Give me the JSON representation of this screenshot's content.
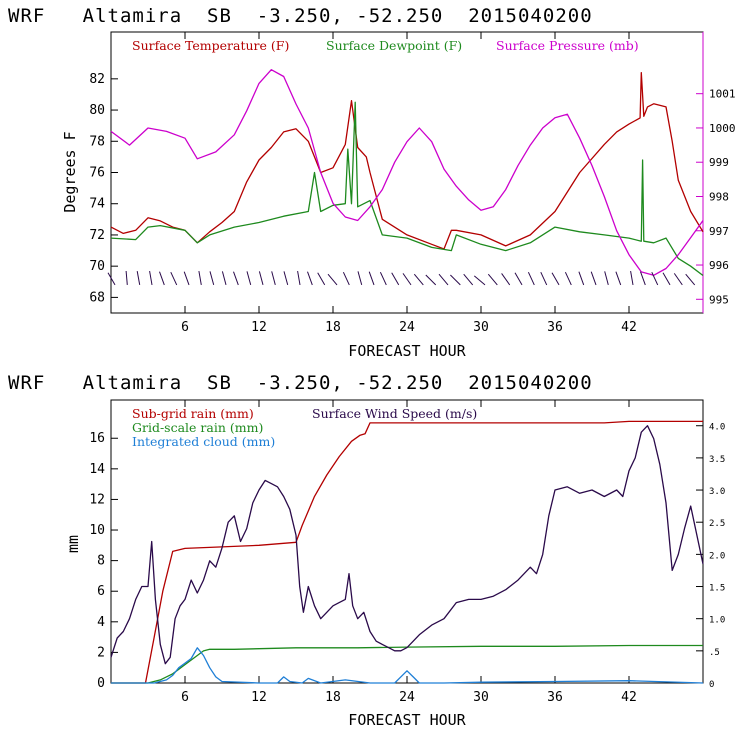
{
  "colors": {
    "temperature": "#b30000",
    "dewpoint": "#1e8a1e",
    "pressure": "#cc00cc",
    "subgrid": "#b30000",
    "gridscale": "#1e8a1e",
    "cloud": "#1f7fd6",
    "wind": "#2a0a4a",
    "barbs": "#2a0a4a"
  },
  "chart_data": [
    {
      "type": "line",
      "title": "WRF   Altamira  SB  -3.250, -52.250  2015040200",
      "xlabel": "FORECAST HOUR",
      "ylabel": "Degrees F",
      "xlim": [
        0,
        48
      ],
      "ylim": [
        67,
        85
      ],
      "y2lim": [
        994.6,
        1002.8
      ],
      "x_ticks": [
        6,
        12,
        18,
        24,
        30,
        36,
        42
      ],
      "x_tick_labels": [
        "6",
        "12",
        "18",
        "24",
        "30",
        "36",
        "42"
      ],
      "y_ticks": [
        68,
        70,
        72,
        74,
        76,
        78,
        80,
        82
      ],
      "y_tick_labels": [
        "68",
        "70",
        "72",
        "74",
        "76",
        "78",
        "80",
        "82"
      ],
      "y2_ticks": [
        995,
        996,
        997,
        998,
        999,
        1000,
        1001
      ],
      "y2_tick_labels": [
        "995",
        "996",
        "997",
        "998",
        "999",
        "1000",
        "1001"
      ],
      "legend": [
        "Surface Temperature (F)",
        "Surface Dewpoint (F)",
        "Surface Pressure (mb)"
      ],
      "series": [
        {
          "name": "Surface Temperature (F)",
          "axis": "left",
          "x": [
            0,
            1,
            2,
            3,
            4,
            5,
            6,
            7,
            8,
            9,
            10,
            11,
            12,
            13,
            14,
            15,
            16,
            17,
            18,
            19,
            19.5,
            20,
            20.7,
            21,
            22,
            24,
            26,
            27,
            27.6,
            28,
            30,
            32,
            34,
            36,
            38,
            40,
            41,
            42,
            42.9,
            43,
            43.2,
            43.5,
            44,
            45,
            45.5,
            46,
            47,
            48
          ],
          "y": [
            72.5,
            72.1,
            72.3,
            73.1,
            72.9,
            72.5,
            72.3,
            71.5,
            72.2,
            72.8,
            73.5,
            75.4,
            76.8,
            77.6,
            78.6,
            78.8,
            78.0,
            76.0,
            76.3,
            77.8,
            80.6,
            77.6,
            77.0,
            76.0,
            73.0,
            72.0,
            71.4,
            71.1,
            72.3,
            72.3,
            72.0,
            71.3,
            72.0,
            73.5,
            76.0,
            77.8,
            78.6,
            79.1,
            79.5,
            82.4,
            79.6,
            80.2,
            80.4,
            80.2,
            78.0,
            75.5,
            73.5,
            72.2
          ]
        },
        {
          "name": "Surface Dewpoint (F)",
          "axis": "left",
          "x": [
            0,
            2,
            3,
            4,
            6,
            7,
            8,
            10,
            12,
            14,
            16,
            16.5,
            17,
            18,
            19,
            19.2,
            19.5,
            19.8,
            20,
            21,
            22,
            24,
            26,
            27.6,
            28,
            30,
            32,
            34,
            36,
            38,
            40,
            42,
            43,
            43.1,
            43.2,
            44,
            45,
            46,
            47,
            48
          ],
          "y": [
            71.8,
            71.7,
            72.5,
            72.6,
            72.3,
            71.5,
            72.0,
            72.5,
            72.8,
            73.2,
            73.5,
            76.0,
            73.5,
            73.9,
            74.0,
            77.5,
            74.0,
            80.5,
            73.8,
            74.2,
            72.0,
            71.8,
            71.2,
            71.0,
            72.0,
            71.4,
            71.0,
            71.5,
            72.5,
            72.2,
            72.0,
            71.8,
            71.6,
            76.8,
            71.6,
            71.5,
            71.8,
            70.5,
            70.0,
            69.4
          ]
        },
        {
          "name": "Surface Pressure (mb)",
          "axis": "right",
          "x": [
            0,
            1.5,
            3,
            4.5,
            6,
            7,
            8.5,
            10,
            11,
            12,
            13,
            14,
            15,
            16,
            17,
            18,
            19,
            20,
            21,
            22,
            23,
            24,
            25,
            26,
            27,
            28,
            29,
            30,
            31,
            32,
            33,
            34,
            35,
            36,
            37,
            38,
            39,
            40,
            41,
            42,
            43,
            44,
            45,
            46,
            47,
            48
          ],
          "y": [
            999.9,
            999.5,
            1000.0,
            999.9,
            999.7,
            999.1,
            999.3,
            999.8,
            1000.5,
            1001.3,
            1001.7,
            1001.5,
            1000.7,
            1000.0,
            998.7,
            997.8,
            997.4,
            997.3,
            997.7,
            998.2,
            999.0,
            999.6,
            1000.0,
            999.6,
            998.8,
            998.3,
            997.9,
            997.6,
            997.7,
            998.2,
            998.9,
            999.5,
            1000.0,
            1000.3,
            1000.4,
            999.7,
            998.9,
            998.0,
            997.0,
            996.3,
            995.8,
            995.7,
            995.9,
            996.3,
            996.8,
            997.3
          ]
        }
      ],
      "wind_barbs": {
        "hours": [
          0,
          1,
          2,
          3,
          4,
          5,
          6,
          7,
          8,
          9,
          10,
          11,
          12,
          13,
          14,
          15,
          16,
          17,
          18,
          19,
          20,
          21,
          22,
          23,
          24,
          25,
          26,
          27,
          28,
          29,
          30,
          31,
          32,
          33,
          34,
          35,
          36,
          37,
          38,
          39,
          40,
          41,
          42,
          43,
          44,
          45,
          46,
          47
        ],
        "direction_deg": [
          120,
          95,
          100,
          100,
          110,
          115,
          110,
          100,
          105,
          105,
          110,
          105,
          105,
          105,
          105,
          100,
          110,
          120,
          130,
          115,
          105,
          110,
          115,
          120,
          125,
          130,
          135,
          130,
          135,
          130,
          140,
          130,
          125,
          120,
          115,
          115,
          120,
          115,
          110,
          110,
          105,
          110,
          100,
          110,
          115,
          120,
          125,
          130
        ],
        "y_level": 68.8
      }
    },
    {
      "type": "line",
      "title": "WRF   Altamira  SB  -3.250, -52.250  2015040200",
      "xlabel": "FORECAST HOUR",
      "ylabel": "mm",
      "xlim": [
        0,
        48
      ],
      "ylim": [
        0,
        18.5
      ],
      "y2lim": [
        0,
        4.4
      ],
      "x_ticks": [
        6,
        12,
        18,
        24,
        30,
        36,
        42
      ],
      "x_tick_labels": [
        "6",
        "12",
        "18",
        "24",
        "30",
        "36",
        "42"
      ],
      "y_ticks": [
        0,
        2,
        4,
        6,
        8,
        10,
        12,
        14,
        16
      ],
      "y_tick_labels": [
        "0",
        "2",
        "4",
        "6",
        "8",
        "10",
        "12",
        "14",
        "16"
      ],
      "y2_ticks": [
        0,
        0.5,
        1.0,
        1.5,
        2.0,
        2.5,
        3.0,
        3.5,
        4.0
      ],
      "y2_tick_labels": [
        "0",
        ".5",
        "1.0",
        "1.5",
        "2.0",
        "2.5",
        "3.0",
        "3.5",
        "4.0"
      ],
      "legend": [
        "Sub-grid rain (mm)",
        "Surface Wind Speed (m/s)",
        "Grid-scale rain (mm)",
        "Integrated cloud (mm)"
      ],
      "series": [
        {
          "name": "Sub-grid rain (mm)",
          "axis": "left",
          "x": [
            0,
            2.8,
            3.5,
            4.2,
            5,
            6,
            9,
            12,
            15,
            15.5,
            16.5,
            17.5,
            18.5,
            19.5,
            20.2,
            20.6,
            21,
            24,
            30,
            36,
            40,
            42,
            48
          ],
          "y": [
            0,
            0,
            3,
            6,
            8.6,
            8.8,
            8.9,
            9.0,
            9.2,
            10.3,
            12.2,
            13.6,
            14.8,
            15.8,
            16.2,
            16.3,
            17.0,
            17.0,
            17.0,
            17.0,
            17.0,
            17.1,
            17.1
          ]
        },
        {
          "name": "Grid-scale rain (mm)",
          "axis": "left",
          "x": [
            0,
            3,
            4,
            5,
            6,
            7,
            7.5,
            8,
            10,
            15,
            20,
            24,
            30,
            36,
            42,
            48
          ],
          "y": [
            0,
            0,
            0.2,
            0.6,
            1.2,
            1.8,
            2.1,
            2.2,
            2.2,
            2.3,
            2.3,
            2.35,
            2.4,
            2.4,
            2.45,
            2.45
          ]
        },
        {
          "name": "Integrated cloud (mm)",
          "axis": "left",
          "x": [
            0,
            3.5,
            4.5,
            5,
            5.5,
            6,
            6.5,
            7,
            7.5,
            8,
            8.5,
            9,
            12,
            13.5,
            14,
            14.5,
            15.5,
            16,
            17,
            19,
            21,
            23,
            23.5,
            24,
            24.5,
            25,
            27,
            30,
            36,
            42,
            48
          ],
          "y": [
            0,
            0,
            0.2,
            0.5,
            1.0,
            1.3,
            1.6,
            2.3,
            1.8,
            1.0,
            0.4,
            0.1,
            0,
            0,
            0.4,
            0.1,
            0,
            0.3,
            0,
            0.2,
            0,
            0,
            0.4,
            0.8,
            0.4,
            0,
            0,
            0.05,
            0.1,
            0.15,
            0
          ]
        },
        {
          "name": "Surface Wind Speed (m/s)",
          "axis": "right",
          "x": [
            0,
            0.5,
            1,
            1.5,
            2,
            2.5,
            3,
            3.3,
            3.6,
            4,
            4.4,
            4.8,
            5.2,
            5.6,
            6,
            6.5,
            7,
            7.5,
            8,
            8.5,
            9,
            9.5,
            10,
            10.5,
            11,
            11.5,
            12,
            12.5,
            13,
            13.5,
            14,
            14.5,
            15,
            15.3,
            15.6,
            16,
            16.5,
            17,
            17.5,
            18,
            18.5,
            19,
            19.3,
            19.6,
            20,
            20.5,
            21,
            21.5,
            22,
            22.5,
            23,
            23.5,
            24,
            24.5,
            25,
            26,
            27,
            28,
            29,
            30,
            31,
            32,
            33,
            34,
            34.5,
            35,
            35.5,
            36,
            37,
            38,
            39,
            40,
            41,
            41.5,
            42,
            42.5,
            43,
            43.5,
            44,
            44.5,
            45,
            45.5,
            46,
            46.5,
            47,
            48
          ],
          "y": [
            0.4,
            0.7,
            0.8,
            1.0,
            1.3,
            1.5,
            1.5,
            2.2,
            1.3,
            0.6,
            0.3,
            0.4,
            1.0,
            1.2,
            1.3,
            1.6,
            1.4,
            1.6,
            1.9,
            1.8,
            2.1,
            2.5,
            2.6,
            2.2,
            2.4,
            2.8,
            3.0,
            3.15,
            3.1,
            3.05,
            2.9,
            2.7,
            2.3,
            1.5,
            1.1,
            1.5,
            1.2,
            1.0,
            1.1,
            1.2,
            1.25,
            1.3,
            1.7,
            1.2,
            1.0,
            1.1,
            0.8,
            0.65,
            0.6,
            0.55,
            0.5,
            0.5,
            0.55,
            0.65,
            0.75,
            0.9,
            1.0,
            1.25,
            1.3,
            1.3,
            1.35,
            1.45,
            1.6,
            1.8,
            1.7,
            2.0,
            2.6,
            3.0,
            3.05,
            2.95,
            3.0,
            2.9,
            3.0,
            2.9,
            3.3,
            3.5,
            3.9,
            4.0,
            3.8,
            3.4,
            2.8,
            1.75,
            2.0,
            2.4,
            2.75,
            1.85
          ]
        }
      ]
    }
  ]
}
